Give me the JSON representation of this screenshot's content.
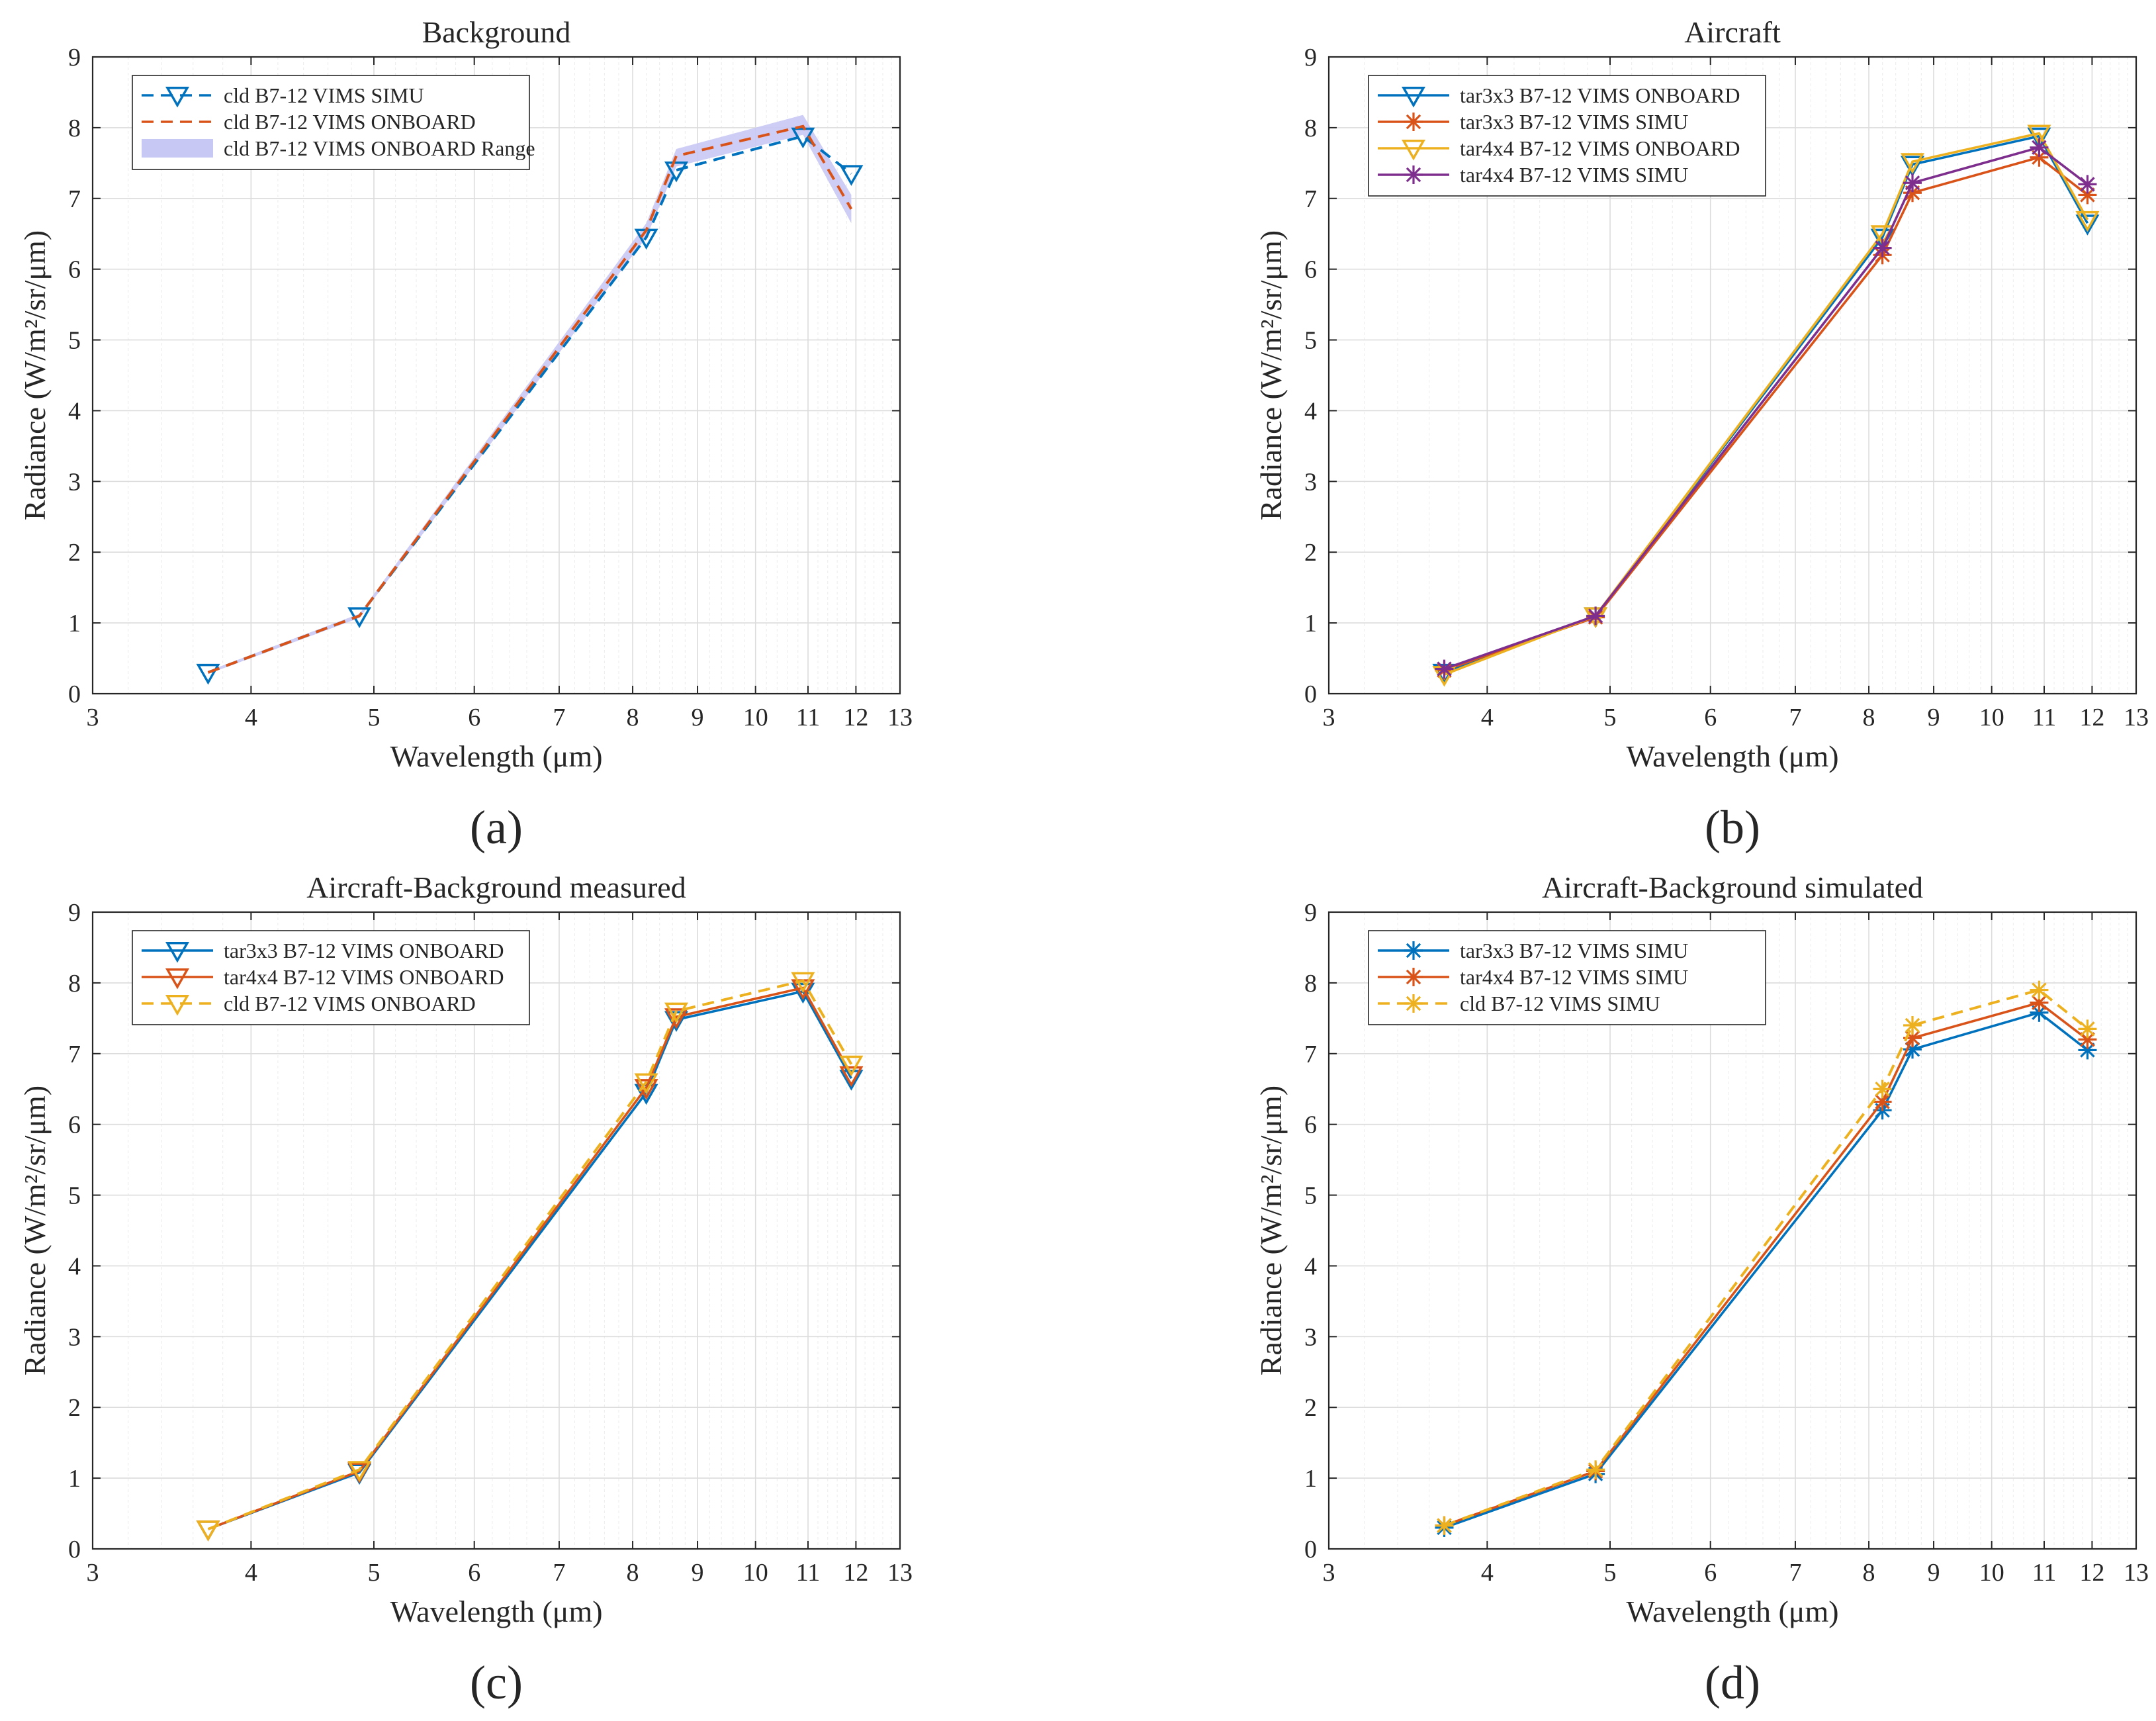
{
  "chart_data": [
    {
      "id": "a",
      "panel_label": "(a)",
      "type": "line",
      "title": "Background",
      "xlabel": "Wavelength (μm)",
      "ylabel": "Radiance (W/m²/sr/μm)",
      "xlim": [
        3,
        13
      ],
      "ylim": [
        0,
        9
      ],
      "xticks": [
        3,
        4,
        5,
        6,
        7,
        8,
        9,
        10,
        11,
        12,
        13
      ],
      "yticks": [
        0,
        1,
        2,
        3,
        4,
        5,
        6,
        7,
        8,
        9
      ],
      "x_scale": "log",
      "grid": true,
      "legend_position": "top-left",
      "x": [
        3.7,
        4.87,
        8.2,
        8.66,
        10.9,
        11.9
      ],
      "series": [
        {
          "name": "cld B7-12 VIMS SIMU",
          "values": [
            0.3,
            1.1,
            6.45,
            7.4,
            7.88,
            7.35
          ],
          "color": "#0072BD",
          "dash": "dashed",
          "marker": "triangle-down"
        },
        {
          "name": "cld B7-12 VIMS ONBOARD",
          "values": [
            0.3,
            1.1,
            6.55,
            7.6,
            8.02,
            6.85
          ],
          "color": "#D95319",
          "dash": "dashed",
          "marker": "none"
        }
      ],
      "range_band": {
        "name": "cld B7-12 VIMS ONBOARD Range",
        "lower": [
          0.28,
          1.07,
          6.45,
          7.45,
          7.9,
          6.65
        ],
        "upper": [
          0.32,
          1.13,
          6.65,
          7.7,
          8.18,
          7.05
        ],
        "color": "#C8C8F4"
      }
    },
    {
      "id": "b",
      "panel_label": "(b)",
      "type": "line",
      "title": "Aircraft",
      "xlabel": "Wavelength (μm)",
      "ylabel": "Radiance (W/m²/sr/μm)",
      "xlim": [
        3,
        13
      ],
      "ylim": [
        0,
        9
      ],
      "xticks": [
        3,
        4,
        5,
        6,
        7,
        8,
        9,
        10,
        11,
        12,
        13
      ],
      "yticks": [
        0,
        1,
        2,
        3,
        4,
        5,
        6,
        7,
        8,
        9
      ],
      "x_scale": "log",
      "grid": true,
      "legend_position": "top-left",
      "x": [
        3.7,
        4.87,
        8.2,
        8.66,
        10.9,
        11.9
      ],
      "series": [
        {
          "name": "tar3x3 B7-12 VIMS ONBOARD",
          "values": [
            0.3,
            1.1,
            6.45,
            7.48,
            7.88,
            6.65
          ],
          "color": "#0072BD",
          "dash": "solid",
          "marker": "triangle-down"
        },
        {
          "name": "tar3x3 B7-12 VIMS SIMU",
          "values": [
            0.33,
            1.08,
            6.2,
            7.08,
            7.58,
            7.05
          ],
          "color": "#D95319",
          "dash": "solid",
          "marker": "asterisk"
        },
        {
          "name": "tar4x4 B7-12 VIMS ONBOARD",
          "values": [
            0.27,
            1.1,
            6.5,
            7.52,
            7.92,
            6.7
          ],
          "color": "#EDB120",
          "dash": "solid",
          "marker": "triangle-down"
        },
        {
          "name": "tar4x4 B7-12 VIMS SIMU",
          "values": [
            0.35,
            1.1,
            6.3,
            7.22,
            7.72,
            7.2
          ],
          "color": "#7E2F8E",
          "dash": "solid",
          "marker": "asterisk"
        }
      ]
    },
    {
      "id": "c",
      "panel_label": "(c)",
      "type": "line",
      "title": "Aircraft-Background measured",
      "xlabel": "Wavelength (μm)",
      "ylabel": "Radiance (W/m²/sr/μm)",
      "xlim": [
        3,
        13
      ],
      "ylim": [
        0,
        9
      ],
      "xticks": [
        3,
        4,
        5,
        6,
        7,
        8,
        9,
        10,
        11,
        12,
        13
      ],
      "yticks": [
        0,
        1,
        2,
        3,
        4,
        5,
        6,
        7,
        8,
        9
      ],
      "x_scale": "log",
      "grid": true,
      "legend_position": "top-left",
      "x": [
        3.7,
        4.87,
        8.2,
        8.66,
        10.9,
        11.9
      ],
      "series": [
        {
          "name": "tar3x3 B7-12 VIMS ONBOARD",
          "values": [
            0.28,
            1.08,
            6.45,
            7.48,
            7.88,
            6.65
          ],
          "color": "#0072BD",
          "dash": "solid",
          "marker": "triangle-down"
        },
        {
          "name": "tar4x4 B7-12 VIMS ONBOARD",
          "values": [
            0.28,
            1.1,
            6.52,
            7.52,
            7.93,
            6.7
          ],
          "color": "#D95319",
          "dash": "solid",
          "marker": "triangle-down"
        },
        {
          "name": "cld B7-12 VIMS ONBOARD",
          "values": [
            0.28,
            1.12,
            6.6,
            7.6,
            8.03,
            6.85
          ],
          "color": "#EDB120",
          "dash": "dashed",
          "marker": "triangle-down"
        }
      ]
    },
    {
      "id": "d",
      "panel_label": "(d)",
      "type": "line",
      "title": "Aircraft-Background simulated",
      "xlabel": "Wavelength (μm)",
      "ylabel": "Radiance (W/m²/sr/μm)",
      "xlim": [
        3,
        13
      ],
      "ylim": [
        0,
        9
      ],
      "xticks": [
        3,
        4,
        5,
        6,
        7,
        8,
        9,
        10,
        11,
        12,
        13
      ],
      "yticks": [
        0,
        1,
        2,
        3,
        4,
        5,
        6,
        7,
        8,
        9
      ],
      "x_scale": "log",
      "grid": true,
      "legend_position": "top-left",
      "x": [
        3.7,
        4.87,
        8.2,
        8.66,
        10.9,
        11.9
      ],
      "series": [
        {
          "name": "tar3x3 B7-12 VIMS SIMU",
          "values": [
            0.3,
            1.06,
            6.2,
            7.06,
            7.58,
            7.05
          ],
          "color": "#0072BD",
          "dash": "solid",
          "marker": "asterisk"
        },
        {
          "name": "tar4x4 B7-12 VIMS SIMU",
          "values": [
            0.33,
            1.1,
            6.32,
            7.22,
            7.72,
            7.2
          ],
          "color": "#D95319",
          "dash": "solid",
          "marker": "asterisk"
        },
        {
          "name": "cld B7-12 VIMS SIMU",
          "values": [
            0.33,
            1.12,
            6.5,
            7.4,
            7.9,
            7.35
          ],
          "color": "#EDB120",
          "dash": "dashed",
          "marker": "asterisk"
        }
      ]
    }
  ]
}
